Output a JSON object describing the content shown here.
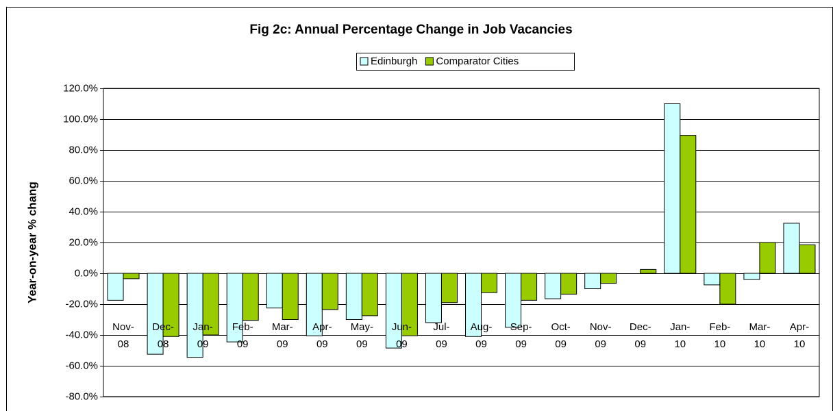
{
  "chart_data": {
    "type": "bar",
    "title": "Fig 2c: Annual Percentage Change in Job Vacancies",
    "y_label": "Year-on-year % chang",
    "categories": [
      "Nov-08",
      "Dec-08",
      "Jan-09",
      "Feb-09",
      "Mar-09",
      "Apr-09",
      "May-09",
      "Jun-09",
      "Jul-09",
      "Aug-09",
      "Sep-09",
      "Oct-09",
      "Nov-09",
      "Dec-09",
      "Jan-10",
      "Feb-10",
      "Mar-10",
      "Apr-10"
    ],
    "series": [
      {
        "name": "Edinburgh",
        "color": "#ccffff",
        "values": [
          -17.5,
          -52.5,
          -54.5,
          -44.5,
          -22.5,
          -40.5,
          -30,
          -48.5,
          -32,
          -41,
          -35,
          -16.5,
          -10,
          0,
          110,
          -7.5,
          -4,
          32.5
        ]
      },
      {
        "name": "Comparator Cities",
        "color": "#99cc00",
        "values": [
          -3.5,
          -41,
          -40,
          -30.5,
          -30,
          -23.5,
          -27.5,
          -40.5,
          -19,
          -12.5,
          -17.5,
          -13.5,
          -6.5,
          2.5,
          89.5,
          -20,
          20,
          18.5
        ]
      }
    ],
    "ylim": [
      -80,
      120
    ],
    "yticks": [
      {
        "value": -80,
        "label": "-80.0%"
      },
      {
        "value": -60,
        "label": "-60.0%"
      },
      {
        "value": -40,
        "label": "-40.0%"
      },
      {
        "value": -20,
        "label": "-20.0%"
      },
      {
        "value": 0,
        "label": "0.0%"
      },
      {
        "value": 20,
        "label": "20.0%"
      },
      {
        "value": 40,
        "label": "40.0%"
      },
      {
        "value": 60,
        "label": "60.0%"
      },
      {
        "value": 80,
        "label": "80.0%"
      },
      {
        "value": 100,
        "label": "100.0%"
      },
      {
        "value": 120,
        "label": "120.0%"
      }
    ],
    "grid": true,
    "legend": "top"
  }
}
